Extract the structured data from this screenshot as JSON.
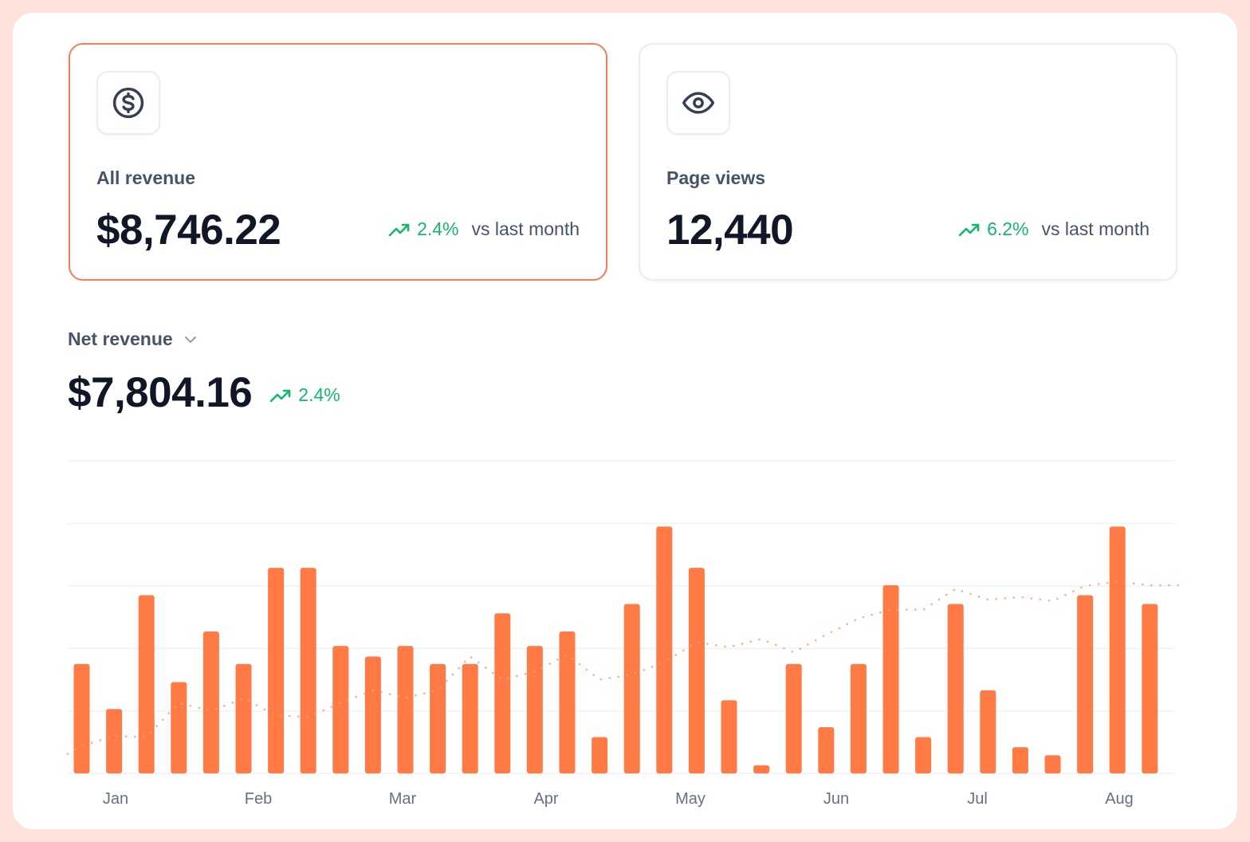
{
  "cards": [
    {
      "label": "All revenue",
      "value": "$8,746.22",
      "trend": "2.4%",
      "trend_suffix": "vs last month",
      "icon": "dollar-circle-icon",
      "selected": true
    },
    {
      "label": "Page views",
      "value": "12,440",
      "trend": "6.2%",
      "trend_suffix": "vs last month",
      "icon": "eye-icon",
      "selected": false
    }
  ],
  "metric": {
    "label": "Net revenue",
    "value": "$7,804.16",
    "trend": "2.4%"
  },
  "colors": {
    "accent": "#f47f4f",
    "bar": "#ff7a45",
    "trend_up": "#12b76a",
    "moving_average": "#f4a27e"
  },
  "chart_data": {
    "type": "bar",
    "x_tick_labels": [
      "Jan",
      "Feb",
      "Mar",
      "Apr",
      "May",
      "Jun",
      "Jul",
      "Aug"
    ],
    "ylim": [
      0,
      5
    ],
    "grid": true,
    "series": [
      {
        "type": "bar",
        "values": [
          1.75,
          1.03,
          2.85,
          1.46,
          2.27,
          1.75,
          3.29,
          3.29,
          2.04,
          1.87,
          2.04,
          1.75,
          1.75,
          2.56,
          2.04,
          2.27,
          0.58,
          2.71,
          3.95,
          3.29,
          1.17,
          0.13,
          1.75,
          0.74,
          1.75,
          3.01,
          0.58,
          2.71,
          1.33,
          0.42,
          0.29,
          2.85,
          3.95,
          2.71
        ]
      },
      {
        "type": "line",
        "style": "dotted",
        "values": [
          0.44,
          0.6,
          0.58,
          1.13,
          1.0,
          1.2,
          0.93,
          0.9,
          1.13,
          1.33,
          1.21,
          1.33,
          1.87,
          1.5,
          1.63,
          1.9,
          1.5,
          1.58,
          1.78,
          2.1,
          2.02,
          2.15,
          1.94,
          2.22,
          2.48,
          2.62,
          2.62,
          2.95,
          2.78,
          2.82,
          2.76,
          3.0,
          3.07,
          3.01
        ]
      }
    ]
  }
}
